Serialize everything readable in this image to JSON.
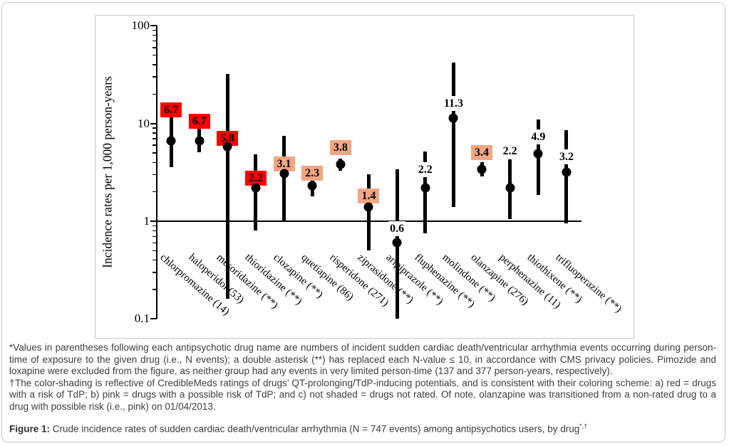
{
  "colors": {
    "red_shade": "#FF0000",
    "pink_shade": "#F4A582",
    "marker": "#000000",
    "frame_border": "#C9C9C9",
    "caption_text": "#3E3E3E"
  },
  "chart_data": {
    "type": "scatter",
    "subtype": "point-estimates-with-95CI-error-bars",
    "title": "",
    "xlabel": "",
    "ylabel": "Incidence rates per 1,000 person-years",
    "yscale": "log",
    "ylim": [
      0.1,
      100
    ],
    "yticks": [
      "100",
      "10",
      "1",
      "0.1"
    ],
    "reference_line_y": 1,
    "grid": false,
    "legend_position": "none",
    "shade_legend": {
      "red": "drugs with a risk of TdP",
      "pink": "drugs with a possible risk of TdP",
      "none": "drugs not rated"
    },
    "points": [
      {
        "label": "chlorpromazine (14)",
        "value": 6.7,
        "ci_low": 3.6,
        "ci_high": 11.6,
        "shade": "red",
        "label_dy": -33
      },
      {
        "label": "haloperidol (53)",
        "value": 6.7,
        "ci_low": 5.1,
        "ci_high": 8.9,
        "shade": "red",
        "label_dy": -17
      },
      {
        "label": "mesoridazine (**)",
        "value": 5.8,
        "ci_low": 0.16,
        "ci_high": 32,
        "shade": "red",
        "label_dy": -1
      },
      {
        "label": "thioridazine (**)",
        "value": 2.2,
        "ci_low": 0.8,
        "ci_high": 4.8,
        "shade": "red",
        "label_dy": -3
      },
      {
        "label": "clozapine (**)",
        "value": 3.1,
        "ci_low": 1.0,
        "ci_high": 7.5,
        "shade": "pink",
        "label_dy": -3
      },
      {
        "label": "quetiapine (86)",
        "value": 2.3,
        "ci_low": 1.8,
        "ci_high": 2.9,
        "shade": "pink",
        "label_dy": -7
      },
      {
        "label": "risperidone (271)",
        "value": 3.8,
        "ci_low": 3.3,
        "ci_high": 4.4,
        "shade": "pink",
        "label_dy": -13
      },
      {
        "label": "ziprasidone (**)",
        "value": 1.4,
        "ci_low": 0.5,
        "ci_high": 3.0,
        "shade": "pink",
        "label_dy": -5
      },
      {
        "label": "aripiprazole (**)",
        "value": 0.6,
        "ci_low": 0.1,
        "ci_high": 3.4,
        "shade": "none",
        "label_dy": -9
      },
      {
        "label": "fluphenazine (**)",
        "value": 2.2,
        "ci_low": 0.75,
        "ci_high": 5.2,
        "shade": "none",
        "label_dy": -15
      },
      {
        "label": "molindone (**)",
        "value": 11.3,
        "ci_low": 1.4,
        "ci_high": 42,
        "shade": "none",
        "label_dy": -10
      },
      {
        "label": "olanzapine (276)",
        "value": 3.4,
        "ci_low": 2.9,
        "ci_high": 4.0,
        "shade": "pink",
        "label_dy": -13
      },
      {
        "label": "perphenazine (11)",
        "value": 2.2,
        "ci_low": 1.05,
        "ci_high": 4.3,
        "shade": "none",
        "label_dy": -41
      },
      {
        "label": "thiothixene (**)",
        "value": 4.9,
        "ci_low": 1.85,
        "ci_high": 11,
        "shade": "none",
        "label_dy": -13
      },
      {
        "label": "trifluoperazine (**)",
        "value": 3.2,
        "ci_low": 0.95,
        "ci_high": 8.5,
        "shade": "none",
        "label_dy": -11
      }
    ]
  },
  "footnotes": {
    "asterisk": "*Values in parentheses following each antipsychotic drug name are numbers of incident sudden cardiac death/ventricular arrhythmia events occurring during person-time of exposure to the given drug (i.e., N events); a double asterisk (**) has replaced each N-value ≤ 10, in accordance with CMS privacy policies. Pimozide and loxapine were excluded from the figure, as neither group had any events in very limited person-time (137 and 377 person-years, respectively).",
    "dagger": "†The color-shading is reflective of CredibleMeds ratings of drugs’ QT-prolonging/TdP-inducing potentials, and is consistent with their coloring scheme: a) red = drugs with a risk of TdP; b) pink = drugs with a possible risk of TdP; and c) not shaded = drugs not rated. Of note, olanzapine was transitioned from a non-rated drug to a drug with possible risk (i.e., pink) on 01/04/2013."
  },
  "figure_caption": {
    "prefix": "Figure 1:",
    "text": " Crude incidence rates of sudden cardiac death/ventricular arrhythmia (N = 747 events) among antipsychotics users, by drug",
    "superscript": "*,†"
  }
}
